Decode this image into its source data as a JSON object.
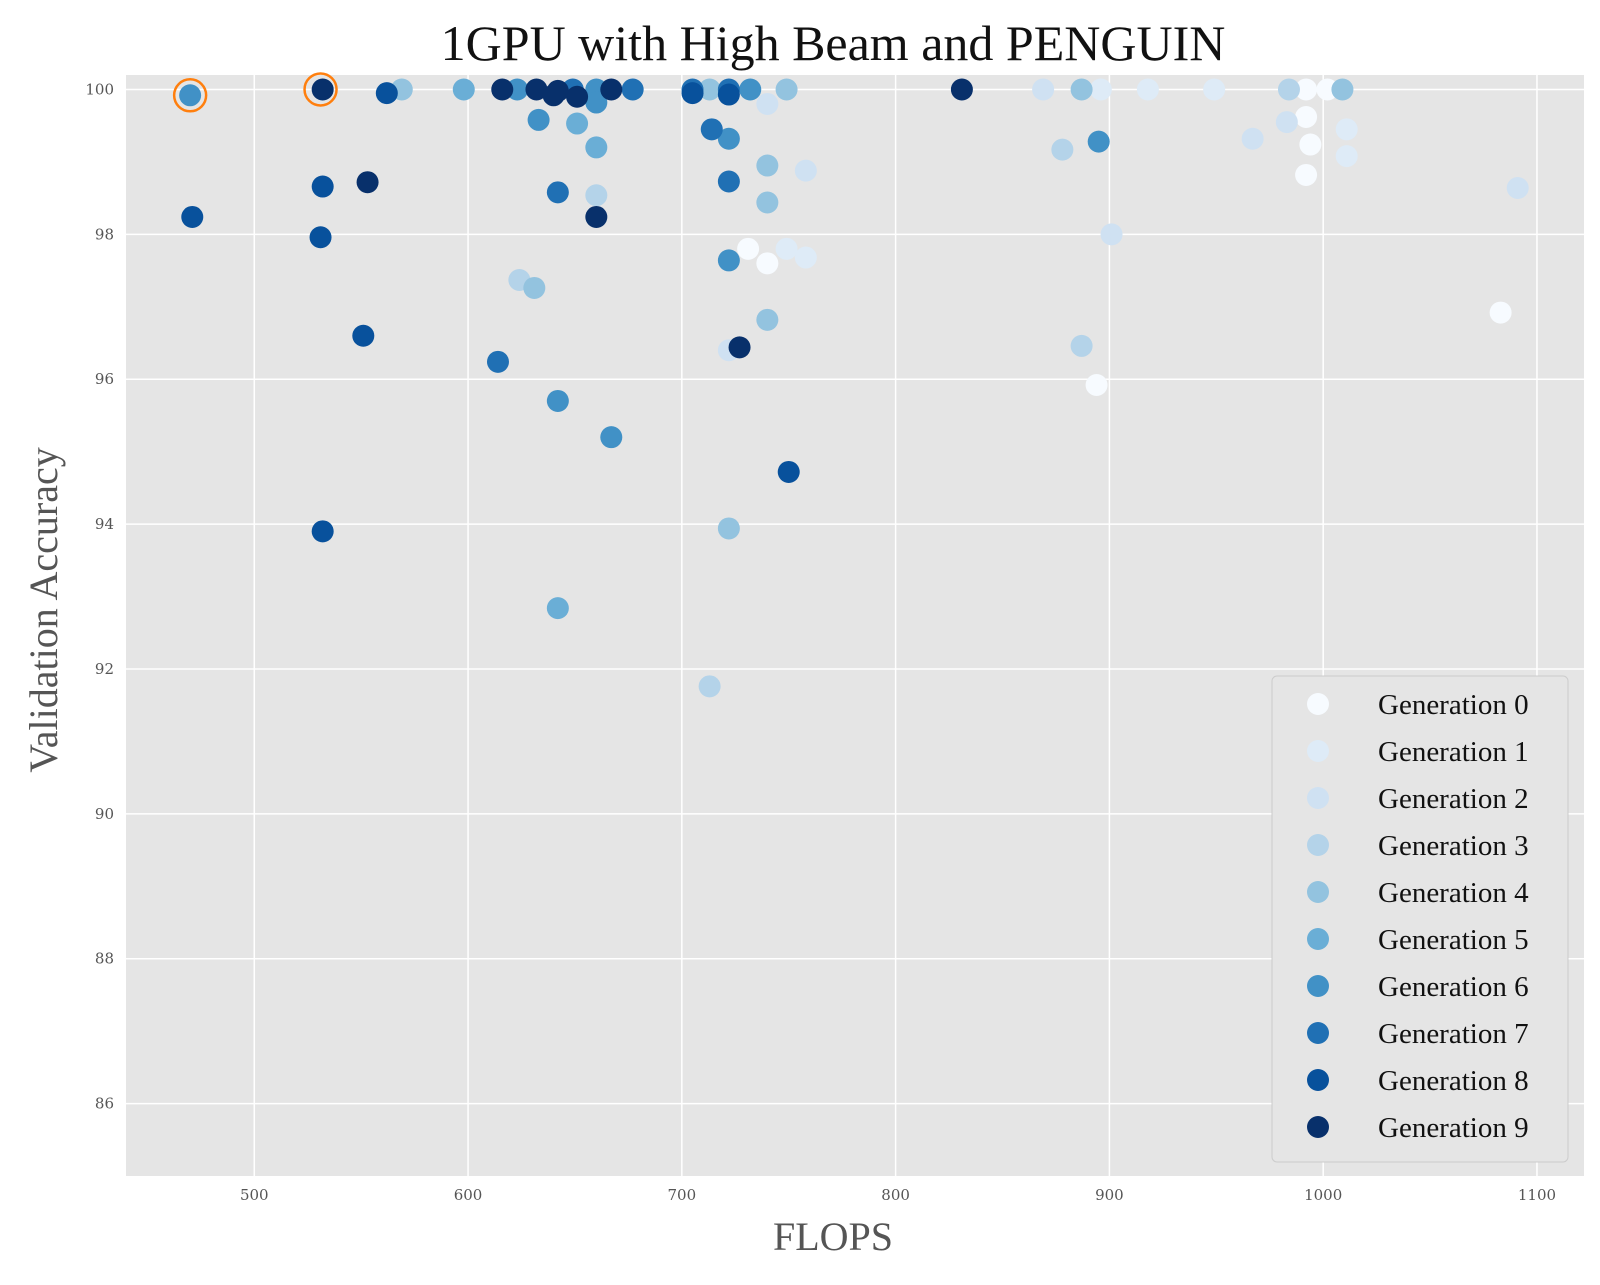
{
  "chart_data": {
    "type": "scatter",
    "title": "1GPU with High Beam and PENGUIN",
    "xlabel": "FLOPS",
    "ylabel": "Validation Accuracy",
    "xlim": [
      440,
      1122
    ],
    "ylim": [
      85,
      100.2
    ],
    "xticks": [
      500,
      600,
      700,
      800,
      900,
      1000,
      1100
    ],
    "yticks": [
      86,
      88,
      90,
      92,
      94,
      96,
      98,
      100
    ],
    "grid": true,
    "legend_position": "lower-right",
    "background_color": "#e5e5e5",
    "highlight_color": "#ff7f0e",
    "series": [
      {
        "name": "Generation 0",
        "color": "#f7fbff",
        "points": [
          [
            992,
            100.0
          ],
          [
            1002,
            100.0
          ],
          [
            992,
            99.62
          ],
          [
            994,
            99.24
          ],
          [
            992,
            98.82
          ],
          [
            731,
            97.8
          ],
          [
            740,
            97.6
          ],
          [
            894,
            95.92
          ],
          [
            1083,
            96.92
          ]
        ]
      },
      {
        "name": "Generation 1",
        "color": "#deebf7",
        "points": [
          [
            896,
            100.0
          ],
          [
            918,
            100.0
          ],
          [
            949,
            100.0
          ],
          [
            1011,
            99.45
          ],
          [
            1011,
            99.08
          ],
          [
            749,
            97.8
          ],
          [
            758,
            97.68
          ]
        ]
      },
      {
        "name": "Generation 2",
        "color": "#cfe1f2",
        "points": [
          [
            869,
            100.0
          ],
          [
            740,
            99.8
          ],
          [
            967,
            99.32
          ],
          [
            983,
            99.55
          ],
          [
            901,
            98.0
          ],
          [
            758,
            98.88
          ],
          [
            722,
            96.4
          ],
          [
            1091,
            98.64
          ]
        ]
      },
      {
        "name": "Generation 3",
        "color": "#b4d3e9",
        "points": [
          [
            984,
            100.0
          ],
          [
            878,
            99.17
          ],
          [
            660,
            98.54
          ],
          [
            624,
            97.37
          ],
          [
            887,
            96.46
          ],
          [
            713,
            91.76
          ]
        ]
      },
      {
        "name": "Generation 4",
        "color": "#93c3df",
        "points": [
          [
            569,
            100.0
          ],
          [
            713,
            100.0
          ],
          [
            749,
            100.0
          ],
          [
            887,
            100.0
          ],
          [
            1009,
            100.0
          ],
          [
            740,
            98.95
          ],
          [
            740,
            98.44
          ],
          [
            631,
            97.26
          ],
          [
            740,
            96.82
          ],
          [
            722,
            93.94
          ]
        ]
      },
      {
        "name": "Generation 5",
        "color": "#6aaed6",
        "points": [
          [
            598,
            100.0
          ],
          [
            651,
            99.53
          ],
          [
            660,
            99.2
          ],
          [
            642,
            92.84
          ]
        ]
      },
      {
        "name": "Generation 6",
        "color": "#4191c6",
        "points": [
          [
            470,
            99.92
          ],
          [
            623,
            100.0
          ],
          [
            660,
            100.0
          ],
          [
            732,
            100.0
          ],
          [
            660,
            99.82
          ],
          [
            633,
            99.58
          ],
          [
            722,
            99.32
          ],
          [
            895,
            99.28
          ],
          [
            722,
            97.64
          ],
          [
            642,
            95.7
          ],
          [
            667,
            95.2
          ]
        ]
      },
      {
        "name": "Generation 7",
        "color": "#2070b4",
        "points": [
          [
            649,
            100.0
          ],
          [
            677,
            100.0
          ],
          [
            705,
            100.0
          ],
          [
            722,
            100.0
          ],
          [
            714,
            99.45
          ],
          [
            642,
            98.58
          ],
          [
            722,
            98.73
          ],
          [
            614,
            96.24
          ]
        ]
      },
      {
        "name": "Generation 8",
        "color": "#08519c",
        "points": [
          [
            562,
            99.95
          ],
          [
            705,
            99.95
          ],
          [
            722,
            99.93
          ],
          [
            532,
            98.66
          ],
          [
            471,
            98.24
          ],
          [
            531,
            97.96
          ],
          [
            551,
            96.6
          ],
          [
            532,
            93.9
          ],
          [
            750,
            94.72
          ]
        ]
      },
      {
        "name": "Generation 9",
        "color": "#08306b",
        "points": [
          [
            532,
            100.0
          ],
          [
            616,
            100.0
          ],
          [
            632,
            100.0
          ],
          [
            642,
            99.98
          ],
          [
            640,
            99.92
          ],
          [
            651,
            99.9
          ],
          [
            667,
            100.0
          ],
          [
            831,
            100.0
          ],
          [
            553,
            98.72
          ],
          [
            660,
            98.24
          ],
          [
            727,
            96.44
          ]
        ]
      }
    ],
    "highlighted_points": [
      [
        470,
        99.92
      ],
      [
        531,
        100.0
      ]
    ]
  }
}
